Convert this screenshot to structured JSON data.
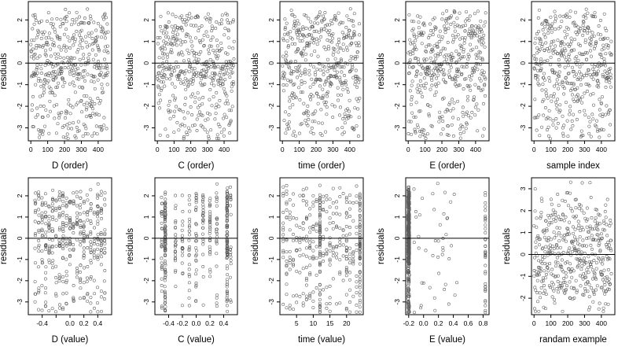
{
  "chart_data": [
    {
      "type": "scatter",
      "xlabel": "D (order)",
      "ylabel": "residuals",
      "xlim": [
        -15,
        480
      ],
      "ylim": [
        -3.6,
        2.85
      ],
      "xticks": [
        0,
        100,
        200,
        300,
        400
      ],
      "yticks": [
        -3,
        -2,
        -1,
        0,
        1,
        2
      ],
      "hline": 0,
      "pattern": "order",
      "n": 450,
      "seed": 11
    },
    {
      "type": "scatter",
      "xlabel": "C (order)",
      "ylabel": "residuals",
      "xlim": [
        -15,
        480
      ],
      "ylim": [
        -3.6,
        2.85
      ],
      "xticks": [
        0,
        100,
        200,
        300,
        400
      ],
      "yticks": [
        -3,
        -2,
        -1,
        0,
        1,
        2
      ],
      "hline": 0,
      "pattern": "order",
      "n": 450,
      "seed": 12
    },
    {
      "type": "scatter",
      "xlabel": "time (order)",
      "ylabel": "residuals",
      "xlim": [
        -15,
        480
      ],
      "ylim": [
        -3.6,
        2.85
      ],
      "xticks": [
        0,
        100,
        200,
        300,
        400
      ],
      "yticks": [
        -3,
        -2,
        -1,
        0,
        1,
        2
      ],
      "hline": 0,
      "pattern": "order",
      "n": 450,
      "seed": 13
    },
    {
      "type": "scatter",
      "xlabel": "E (order)",
      "ylabel": "residuals",
      "xlim": [
        -15,
        480
      ],
      "ylim": [
        -3.6,
        2.85
      ],
      "xticks": [
        0,
        100,
        200,
        300,
        400
      ],
      "yticks": [
        -3,
        -2,
        -1,
        0,
        1,
        2
      ],
      "hline": 0,
      "pattern": "order",
      "n": 450,
      "seed": 14
    },
    {
      "type": "scatter",
      "xlabel": "sample index",
      "ylabel": "residuals",
      "xlim": [
        -15,
        480
      ],
      "ylim": [
        -3.6,
        2.85
      ],
      "xticks": [
        0,
        100,
        200,
        300,
        400
      ],
      "yticks": [
        -3,
        -2,
        -1,
        0,
        1,
        2
      ],
      "hline": 0,
      "pattern": "order",
      "n": 450,
      "seed": 15
    },
    {
      "type": "scatter",
      "xlabel": "D (value)",
      "ylabel": "residuals",
      "xlim": [
        -0.6,
        0.6
      ],
      "ylim": [
        -3.6,
        2.85
      ],
      "xticks": [
        -0.4,
        -0.2,
        0,
        0.2,
        0.4
      ],
      "xticklabels": [
        "-0.4",
        "",
        "0.0",
        "0.2",
        "0.4"
      ],
      "yticks": [
        -3,
        -2,
        -1,
        0,
        1,
        2
      ],
      "hline": 0,
      "pattern": "dvalue",
      "n": 420,
      "seed": 21
    },
    {
      "type": "scatter",
      "xlabel": "C (value)",
      "ylabel": "residuals",
      "xlim": [
        -0.6,
        0.6
      ],
      "ylim": [
        -3.6,
        2.85
      ],
      "xticks": [
        -0.4,
        -0.2,
        0,
        0.2,
        0.4
      ],
      "xticklabels": [
        "-0.4",
        "-0.2",
        "0.0",
        "0.2",
        "0.4"
      ],
      "yticks": [
        -3,
        -2,
        -1,
        0,
        1,
        2
      ],
      "hline": 0,
      "pattern": "cvalue",
      "n": 420,
      "seed": 22
    },
    {
      "type": "scatter",
      "xlabel": "time (value)",
      "ylabel": "residuals",
      "xlim": [
        0,
        25
      ],
      "ylim": [
        -3.6,
        2.85
      ],
      "xticks": [
        5,
        10,
        15,
        20
      ],
      "yticks": [
        -3,
        -2,
        -1,
        0,
        1,
        2
      ],
      "hline": 0,
      "pattern": "time",
      "n": 420,
      "seed": 23
    },
    {
      "type": "scatter",
      "xlabel": "E (value)",
      "ylabel": "residuals",
      "xlim": [
        -0.24,
        0.88
      ],
      "ylim": [
        -3.6,
        2.85
      ],
      "xticks": [
        -0.2,
        0,
        0.2,
        0.4,
        0.6,
        0.8
      ],
      "xticklabels": [
        "-0.2",
        "0.0",
        "0.2",
        "0.4",
        "0.6",
        "0.8"
      ],
      "yticks": [
        -3,
        -2,
        -1,
        0,
        1,
        2
      ],
      "hline": 0,
      "pattern": "evalue",
      "n": 420,
      "seed": 24
    },
    {
      "type": "scatter",
      "xlabel": "randam example",
      "ylabel": "residuals",
      "xlim": [
        -15,
        480
      ],
      "ylim": [
        -2.75,
        3.5
      ],
      "xticks": [
        0,
        100,
        200,
        300,
        400
      ],
      "yticks": [
        -2,
        -1,
        0,
        1,
        2,
        3
      ],
      "hline": 0,
      "pattern": "random",
      "n": 450,
      "seed": 25
    }
  ]
}
